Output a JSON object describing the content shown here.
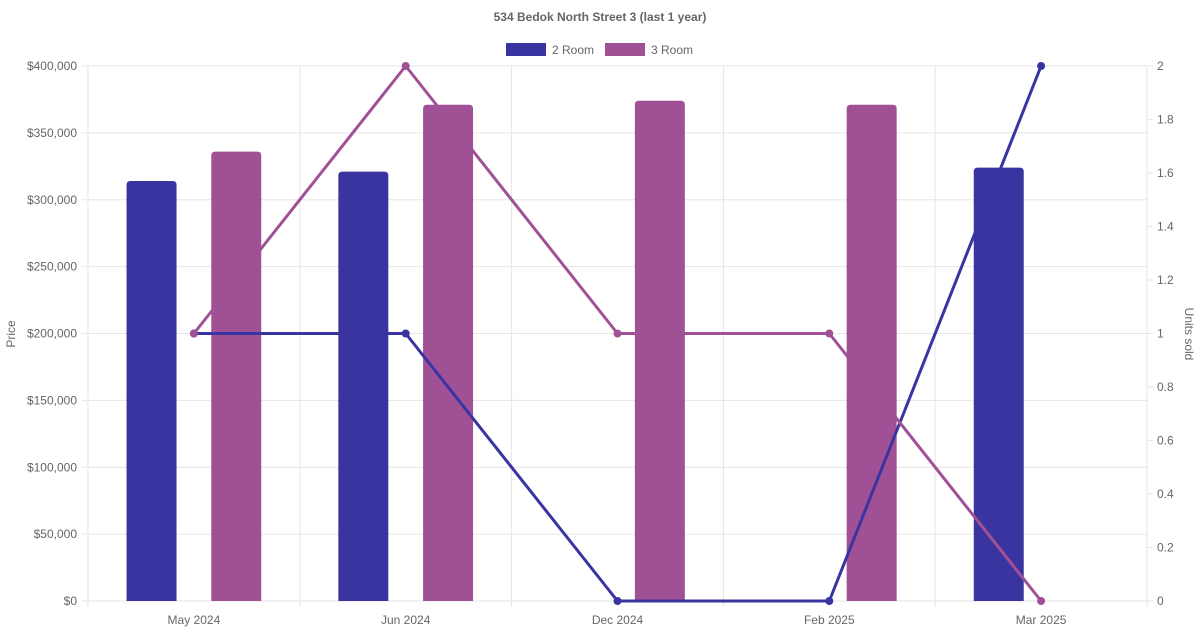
{
  "chart_data": {
    "type": "bar",
    "title": "534 Bedok North Street 3 (last 1 year)",
    "categories": [
      "May 2024",
      "Jun 2024",
      "Dec 2024",
      "Feb 2025",
      "Mar 2025"
    ],
    "legend": {
      "position": "top"
    },
    "series": [
      {
        "name": "2 Room",
        "color": "#3a34a0",
        "type": "bar",
        "axis": "y",
        "values": [
          314000,
          321000,
          null,
          null,
          324000
        ]
      },
      {
        "name": "3 Room",
        "color": "#a05196",
        "type": "bar",
        "axis": "y",
        "values": [
          336000,
          371000,
          374000,
          371000,
          null
        ]
      },
      {
        "name": "2 Room",
        "color": "#3a34a0",
        "type": "line",
        "axis": "y2",
        "values": [
          1,
          1,
          0,
          0,
          2
        ]
      },
      {
        "name": "3 Room",
        "color": "#a05196",
        "type": "line",
        "axis": "y2",
        "values": [
          1,
          2,
          1,
          1,
          0
        ]
      }
    ],
    "ylabel": "Price",
    "y2label": "Units sold",
    "ylim": [
      0,
      400000
    ],
    "y2lim": [
      0,
      2
    ],
    "yticks": [
      "$0",
      "$50,000",
      "$100,000",
      "$150,000",
      "$200,000",
      "$250,000",
      "$300,000",
      "$350,000",
      "$400,000"
    ],
    "y2ticks": [
      "0",
      "0.2",
      "0.4",
      "0.6",
      "0.8",
      "1",
      "1.2",
      "1.4",
      "1.6",
      "1.8",
      "2"
    ],
    "grid": true
  }
}
